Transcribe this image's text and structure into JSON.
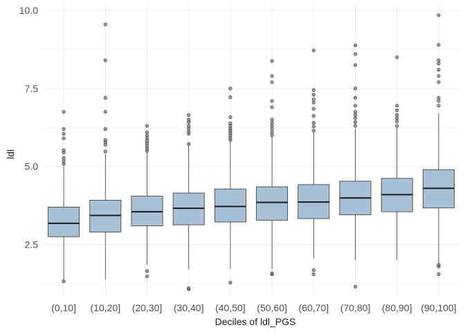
{
  "chart_data": {
    "type": "box",
    "title": "",
    "xlabel": "Deciles of ldl_PGS",
    "ylabel": "ldl",
    "ylim": [
      0.85,
      10.2
    ],
    "yticks": [
      2.5,
      5.0,
      7.5,
      10.0
    ],
    "ytick_labels": [
      "2.5",
      "5.0",
      "7.5",
      "10.0"
    ],
    "grid": true,
    "categories": [
      "(0,10]",
      "(10,20]",
      "(20,30]",
      "(30,40]",
      "(40,50]",
      "(50,60]",
      "(60,70]",
      "(70,80]",
      "(80,90]",
      "(90,100]"
    ],
    "box_color": "#a9c1d6",
    "boxes": [
      {
        "q1": 2.75,
        "median": 3.18,
        "q3": 3.7,
        "lower": 1.35,
        "upper": 5.0,
        "outliers": [
          1.32,
          5.08,
          5.17,
          5.27,
          5.45,
          5.52,
          5.9,
          6.05,
          6.2,
          6.75
        ]
      },
      {
        "q1": 2.9,
        "median": 3.43,
        "q3": 3.92,
        "lower": 1.38,
        "upper": 5.4,
        "outliers": [
          5.48,
          5.7,
          5.78,
          5.85,
          6.2,
          6.75,
          7.2,
          8.4,
          9.55
        ]
      },
      {
        "q1": 3.1,
        "median": 3.55,
        "q3": 4.05,
        "lower": 1.85,
        "upper": 5.45,
        "outliers": [
          1.48,
          1.65,
          5.5,
          5.58,
          5.66,
          5.75,
          5.83,
          5.92,
          6.0,
          6.1,
          6.3
        ]
      },
      {
        "q1": 3.13,
        "median": 3.66,
        "q3": 4.15,
        "lower": 1.7,
        "upper": 5.7,
        "outliers": [
          1.07,
          1.1,
          5.72,
          6.05,
          6.12,
          6.22,
          6.3,
          6.42,
          6.5,
          6.65
        ]
      },
      {
        "q1": 3.22,
        "median": 3.72,
        "q3": 4.28,
        "lower": 1.72,
        "upper": 5.8,
        "outliers": [
          1.28,
          5.85,
          5.92,
          6.0,
          6.08,
          6.15,
          6.22,
          6.3,
          6.38,
          6.58,
          7.22,
          7.5
        ]
      },
      {
        "q1": 3.28,
        "median": 3.85,
        "q3": 4.35,
        "lower": 1.72,
        "upper": 5.95,
        "outliers": [
          1.55,
          1.58,
          6.0,
          6.1,
          6.2,
          6.3,
          6.4,
          6.5,
          6.9,
          7.1,
          7.7,
          7.9,
          8.38
        ]
      },
      {
        "q1": 3.33,
        "median": 3.86,
        "q3": 4.42,
        "lower": 2.05,
        "upper": 6.1,
        "outliers": [
          1.55,
          1.68,
          6.15,
          6.28,
          6.4,
          6.62,
          6.85,
          7.05,
          7.15,
          7.3,
          7.45,
          8.72
        ]
      },
      {
        "q1": 3.45,
        "median": 3.99,
        "q3": 4.53,
        "lower": 2.0,
        "upper": 6.2,
        "outliers": [
          1.15,
          6.3,
          6.42,
          6.55,
          6.65,
          6.75,
          6.95,
          7.2,
          7.5,
          8.25,
          8.6,
          8.88
        ]
      },
      {
        "q1": 3.55,
        "median": 4.1,
        "q3": 4.62,
        "lower": 2.0,
        "upper": 6.25,
        "outliers": [
          6.3,
          6.45,
          6.55,
          6.65,
          6.8,
          6.95,
          8.5
        ]
      },
      {
        "q1": 3.67,
        "median": 4.3,
        "q3": 4.9,
        "lower": 1.9,
        "upper": 6.72,
        "outliers": [
          1.55,
          1.8,
          1.85,
          6.95,
          7.1,
          7.2,
          7.7,
          7.9,
          8.1,
          8.3,
          8.4,
          8.9,
          9.85
        ]
      }
    ]
  }
}
